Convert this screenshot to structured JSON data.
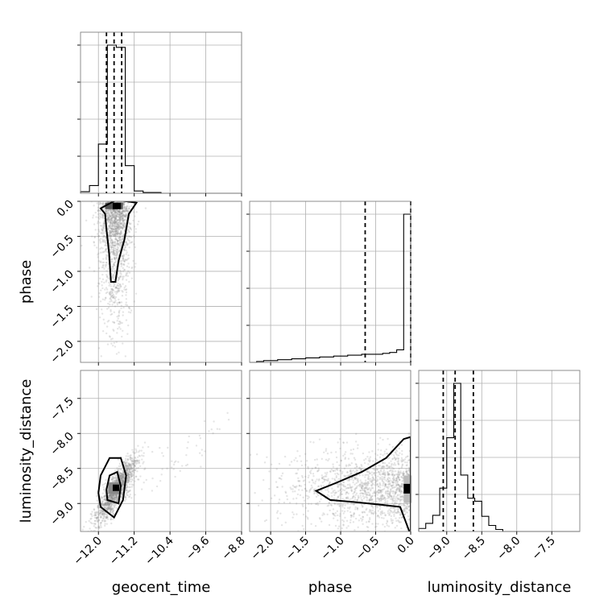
{
  "chart_data": {
    "type": "corner",
    "parameters": [
      "geocent_time",
      "phase",
      "luminosity_distance"
    ],
    "axis_ranges": {
      "geocent_time": [
        -12.4,
        -8.8
      ],
      "phase": [
        -2.3,
        0.0
      ],
      "luminosity_distance": [
        -9.4,
        -7.1
      ]
    },
    "ticks": {
      "geocent_time": [
        -12.0,
        -11.2,
        -10.4,
        -9.6,
        -8.8
      ],
      "phase": [
        -2.0,
        -1.5,
        -1.0,
        -0.5,
        0.0
      ],
      "luminosity_distance": [
        -9.0,
        -8.5,
        -8.0,
        -7.5
      ]
    },
    "tick_labels": {
      "geocent_time": [
        "−12.0",
        "−11.2",
        "−10.4",
        "−9.6",
        "−8.8"
      ],
      "phase": [
        "−2.0",
        "−1.5",
        "−1.0",
        "−0.5",
        "0.0"
      ],
      "luminosity_distance": [
        "−9.0",
        "−8.5",
        "−8.0",
        "−7.5"
      ]
    },
    "histograms": {
      "geocent_time": {
        "bin_edges": [
          -12.4,
          -12.2,
          -12.0,
          -11.8,
          -11.6,
          -11.4,
          -11.2,
          -11.0,
          -10.8,
          -10.6,
          -10.4,
          -10.2,
          -10.0,
          -9.8,
          -9.6,
          -9.4,
          -9.2,
          -9.0,
          -8.8
        ],
        "counts": [
          2,
          10,
          64,
          193,
          190,
          36,
          3,
          1,
          1,
          0,
          0,
          0,
          0,
          0,
          0,
          0,
          0,
          0
        ],
        "quantiles": [
          -11.82,
          -11.65,
          -11.48
        ]
      },
      "phase": {
        "bin_edges": [
          -2.3,
          -2.2,
          -2.1,
          -2.0,
          -1.9,
          -1.8,
          -1.7,
          -1.6,
          -1.5,
          -1.4,
          -1.3,
          -1.2,
          -1.1,
          -1.0,
          -0.9,
          -0.8,
          -0.7,
          -0.6,
          -0.5,
          -0.4,
          -0.3,
          -0.2,
          -0.1,
          0.0
        ],
        "counts": [
          0,
          1,
          2,
          2,
          3,
          3,
          4,
          4,
          5,
          5,
          6,
          6,
          7,
          7,
          8,
          8,
          9,
          9,
          9,
          10,
          11,
          14,
          165
        ],
        "quantiles": [
          -0.65,
          0.0
        ]
      },
      "luminosity_distance": {
        "bin_edges": [
          -9.4,
          -9.3,
          -9.2,
          -9.1,
          -9.0,
          -8.9,
          -8.8,
          -8.7,
          -8.6,
          -8.5,
          -8.4,
          -8.3,
          -8.2,
          -8.1,
          -8.0,
          -7.9,
          -7.8,
          -7.7,
          -7.6,
          -7.5,
          -7.4,
          -7.3,
          -7.2,
          -7.1
        ],
        "counts": [
          3,
          8,
          16,
          43,
          93,
          147,
          56,
          33,
          30,
          15,
          6,
          2,
          0,
          0,
          0,
          0,
          0,
          0,
          0,
          0,
          0,
          0,
          0
        ],
        "quantiles": [
          -9.05,
          -8.88,
          -8.62
        ]
      }
    },
    "scatter_2d": [
      {
        "x": "geocent_time",
        "y": "phase",
        "point_count": 1500,
        "cluster": {
          "x_center": -11.62,
          "y_mode": 0.0,
          "x_spread": 0.18
        },
        "contours": [
          [
            [
              -11.95,
              -0.1
            ],
            [
              -11.6,
              0.02
            ],
            [
              -11.15,
              -0.02
            ],
            [
              -11.32,
              -0.18
            ],
            [
              -11.42,
              -0.55
            ],
            [
              -11.55,
              -0.85
            ],
            [
              -11.62,
              -1.15
            ],
            [
              -11.72,
              -1.15
            ],
            [
              -11.76,
              -0.75
            ],
            [
              -11.82,
              -0.4
            ],
            [
              -11.85,
              -0.18
            ]
          ]
        ]
      },
      {
        "x": "geocent_time",
        "y": "luminosity_distance",
        "point_count": 1500,
        "cluster": {
          "x_center": -11.6,
          "y_center": -8.8,
          "x_spread": 0.22,
          "y_spread": 0.2
        },
        "contours": [
          [
            [
              -11.95,
              -9.05
            ],
            [
              -11.65,
              -9.2
            ],
            [
              -11.45,
              -8.95
            ],
            [
              -11.38,
              -8.6
            ],
            [
              -11.5,
              -8.35
            ],
            [
              -11.75,
              -8.35
            ],
            [
              -11.95,
              -8.6
            ],
            [
              -12.0,
              -8.85
            ]
          ],
          [
            [
              -11.8,
              -8.95
            ],
            [
              -11.55,
              -9.0
            ],
            [
              -11.5,
              -8.75
            ],
            [
              -11.58,
              -8.55
            ],
            [
              -11.75,
              -8.6
            ],
            [
              -11.82,
              -8.8
            ]
          ]
        ]
      },
      {
        "x": "phase",
        "y": "luminosity_distance",
        "point_count": 1500,
        "cluster": {
          "x_mode": 0.0,
          "y_center": -8.78,
          "y_spread": 0.28
        },
        "contours": [
          [
            [
              -1.35,
              -8.82
            ],
            [
              -1.05,
              -8.7
            ],
            [
              -0.7,
              -8.55
            ],
            [
              -0.35,
              -8.35
            ],
            [
              -0.1,
              -8.08
            ],
            [
              0.0,
              -8.05
            ],
            [
              0.0,
              -9.45
            ],
            [
              -0.15,
              -9.05
            ],
            [
              -0.4,
              -9.02
            ],
            [
              -0.8,
              -8.98
            ],
            [
              -1.15,
              -8.95
            ]
          ]
        ]
      }
    ]
  }
}
